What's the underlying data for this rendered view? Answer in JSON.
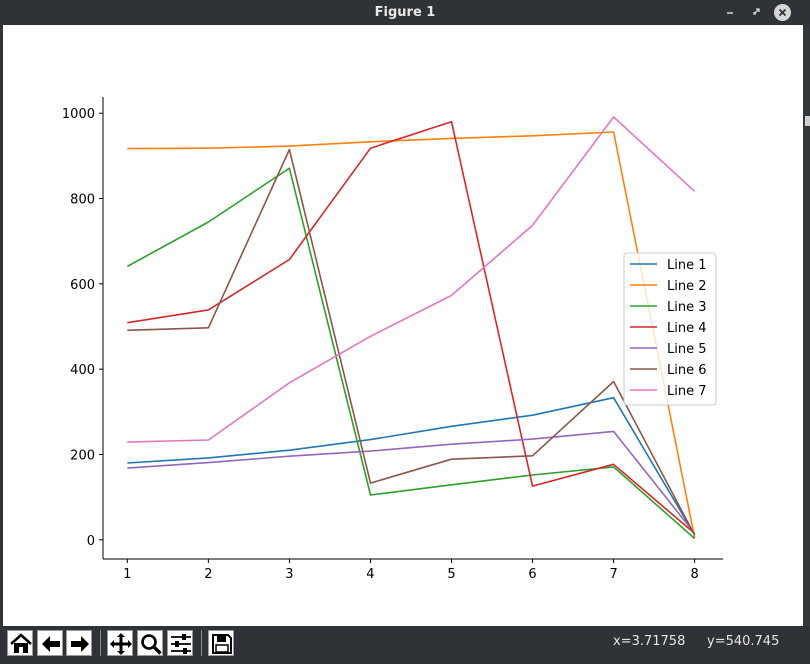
{
  "window": {
    "title": "Figure 1",
    "controls": [
      "minimize-icon",
      "maximize-icon",
      "close-icon"
    ]
  },
  "toolbar": {
    "buttons": [
      {
        "name": "home-button",
        "icon": "home-icon"
      },
      {
        "name": "back-button",
        "icon": "arrow-left-icon"
      },
      {
        "name": "forward-button",
        "icon": "arrow-right-icon"
      },
      {
        "name": "pan-button",
        "icon": "move-icon"
      },
      {
        "name": "zoom-button",
        "icon": "magnifier-icon"
      },
      {
        "name": "configure-subplots-button",
        "icon": "sliders-icon"
      },
      {
        "name": "save-button",
        "icon": "floppy-icon"
      }
    ]
  },
  "status": {
    "x_readout": "x=3.71758",
    "y_readout": "y=540.745"
  },
  "chart_data": {
    "type": "line",
    "title": "",
    "xlabel": "",
    "ylabel": "",
    "x": [
      1,
      2,
      3,
      4,
      5,
      6,
      7,
      8
    ],
    "xlim": [
      0.7,
      8.35
    ],
    "ylim": [
      -45,
      1038
    ],
    "xticks": [
      "1",
      "2",
      "3",
      "4",
      "5",
      "6",
      "7",
      "8"
    ],
    "yticks": [
      "0",
      "200",
      "400",
      "600",
      "800",
      "1000"
    ],
    "ytick_values": [
      0,
      200,
      400,
      600,
      800,
      1000
    ],
    "grid": false,
    "legend_position": "center-right",
    "series": [
      {
        "name": "Line 1",
        "color": "#1f77b4",
        "values": [
          180,
          192,
          210,
          235,
          266,
          292,
          333,
          12
        ]
      },
      {
        "name": "Line 2",
        "color": "#ff7f0e",
        "values": [
          917,
          918,
          923,
          933,
          941,
          947,
          956,
          5
        ]
      },
      {
        "name": "Line 3",
        "color": "#2ca02c",
        "values": [
          641,
          745,
          871,
          105,
          129,
          152,
          171,
          3
        ]
      },
      {
        "name": "Line 4",
        "color": "#d62728",
        "values": [
          509,
          539,
          657,
          918,
          980,
          126,
          177,
          15
        ]
      },
      {
        "name": "Line 5",
        "color": "#9467bd",
        "values": [
          168,
          181,
          196,
          208,
          224,
          236,
          254,
          15
        ]
      },
      {
        "name": "Line 6",
        "color": "#8c564b",
        "values": [
          491,
          497,
          915,
          133,
          189,
          197,
          371,
          11
        ]
      },
      {
        "name": "Line 7",
        "color": "#e377c2",
        "values": [
          229,
          234,
          368,
          477,
          573,
          737,
          991,
          817
        ]
      }
    ]
  }
}
